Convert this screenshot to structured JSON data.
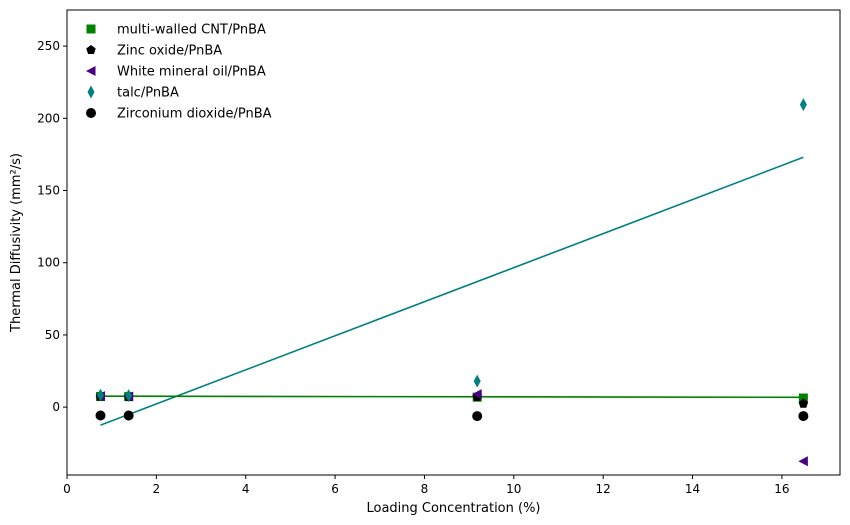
{
  "chart_data": {
    "type": "scatter",
    "title": "",
    "xlabel": "Loading Concentration (%)",
    "ylabel": "Thermal Diffusivity (mm²/s)",
    "xlim": [
      0,
      17.3
    ],
    "ylim": [
      -47,
      275
    ],
    "xticks": [
      0,
      2,
      4,
      6,
      8,
      10,
      12,
      14,
      16
    ],
    "yticks": [
      0,
      50,
      100,
      150,
      200,
      250
    ],
    "grid": false,
    "legend_position": "top-left",
    "series": [
      {
        "name": "multi-walled CNT/PnBA",
        "marker": "square",
        "color": "#008000",
        "x": [
          0.75,
          1.38,
          9.18,
          16.48
        ],
        "y": [
          7.4,
          7.3,
          6.9,
          6.3
        ]
      },
      {
        "name": "Zinc oxide/PnBA",
        "marker": "pentagon",
        "color": "#000000",
        "x": [
          0.75,
          1.38,
          9.18,
          16.48
        ],
        "y": [
          7.2,
          7.0,
          7.0,
          2.4
        ]
      },
      {
        "name": "White mineral oil/PnBA",
        "marker": "triangle-left",
        "color": "#4b0082",
        "x": [
          0.75,
          1.38,
          9.18,
          16.48
        ],
        "y": [
          7.6,
          7.4,
          9.0,
          -37.5
        ]
      },
      {
        "name": "talc/PnBA",
        "marker": "thin-diamond",
        "color": "#008080",
        "x": [
          0.75,
          1.38,
          9.18,
          16.48
        ],
        "y": [
          8.3,
          8.0,
          18.0,
          209.5
        ]
      },
      {
        "name": "Zirconium dioxide/PnBA",
        "marker": "circle",
        "color": "#000000",
        "x": [
          0.75,
          1.38,
          9.18,
          16.48
        ],
        "y": [
          -5.8,
          -5.8,
          -6.2,
          -6.2
        ]
      }
    ],
    "fit_lines": [
      {
        "series": "talc/PnBA",
        "color": "#008080",
        "x": [
          0.75,
          16.48
        ],
        "y": [
          -12.5,
          173.0
        ]
      },
      {
        "series": "multi-walled CNT/PnBA",
        "color": "#008000",
        "x": [
          0.75,
          16.48
        ],
        "y": [
          7.6,
          6.8
        ]
      }
    ]
  }
}
